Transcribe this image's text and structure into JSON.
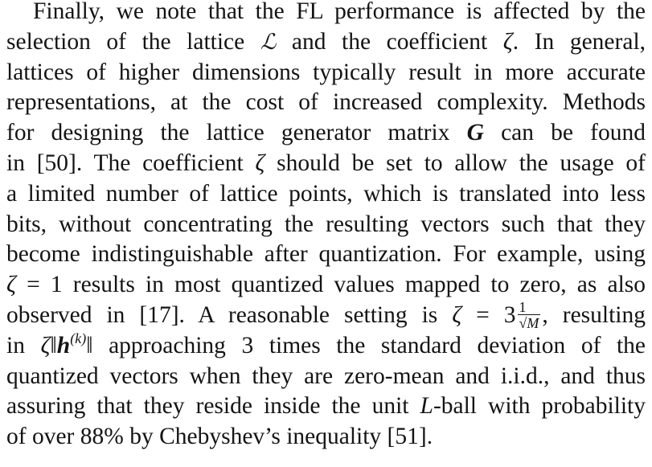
{
  "paragraph": {
    "l1": "Finally, we note that the FL performance is affected by the",
    "l2_a": "selection of the lattice",
    "l2_L": "ℒ",
    "l2_b": "and the coefficient",
    "l2_zeta": "ζ",
    "l2_c": ". In general,",
    "l3": "lattices of higher dimensions typically result in more accurate",
    "l4": "representations, at the cost of increased complexity. Methods",
    "l5_a": "for designing the lattice generator matrix",
    "l5_G": "G",
    "l5_b": "can be found",
    "l6_a": "in [50]. The coefficient",
    "l6_zeta": "ζ",
    "l6_b": "should be set to allow the usage of",
    "l7": "a limited number of lattice points, which is translated into less",
    "l8": "bits, without concentrating the resulting vectors such that they",
    "l9": "become indistinguishable after quantization. For example, using",
    "l10_zeta": "ζ",
    "l10_eq": " = 1",
    "l10_b": "results in most quantized values mapped to zero, as also",
    "l11_a": "observed in [17]. A reasonable setting is",
    "l11_zeta": "ζ",
    "l11_eq": " = 3",
    "l11_num": "1",
    "l11_den": "√M",
    "l11_b": ", resulting",
    "l12_a": "in",
    "l12_zeta": "ζ",
    "l12_norm_open": "‖",
    "l12_h": "h",
    "l12_sup": "(k)",
    "l12_norm_close": "‖",
    "l12_b": "approaching 3 times the standard deviation of the",
    "l13": "quantized vectors when they are zero-mean and i.i.d., and thus",
    "l14_a": "assuring that they reside inside the unit",
    "l14_L": "L",
    "l14_b": "-ball with probability",
    "l15": "of over 88% by Chebyshev’s inequality [51]."
  }
}
